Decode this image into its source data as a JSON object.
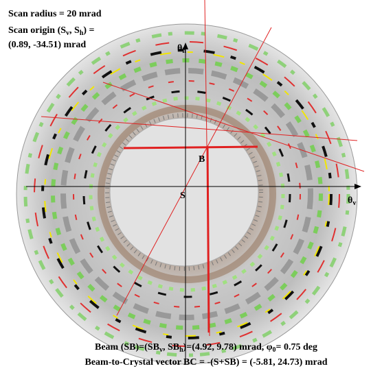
{
  "header": {
    "scan_radius": "Scan radius = 20 mrad",
    "scan_origin": [
      "Scan origin (S",
      "v",
      ", S",
      "h",
      ") ="
    ],
    "scan_origin_value": "(0.89, -34.51) mrad"
  },
  "axes": {
    "vertical": [
      "θ",
      "h"
    ],
    "horizontal": [
      "θ",
      "v"
    ]
  },
  "points": {
    "beam": "B",
    "origin": "S"
  },
  "footer": {
    "beam": [
      "Beam (SB)=(SB",
      "v",
      ", SB",
      "h",
      ")=(4.92, 9.78) mrad,  φ",
      "0",
      "= 0.75 deg"
    ],
    "vector": "Beam-to-Crystal vector BC = -(S+SB) = (-5.81, 24.73) mrad"
  }
}
